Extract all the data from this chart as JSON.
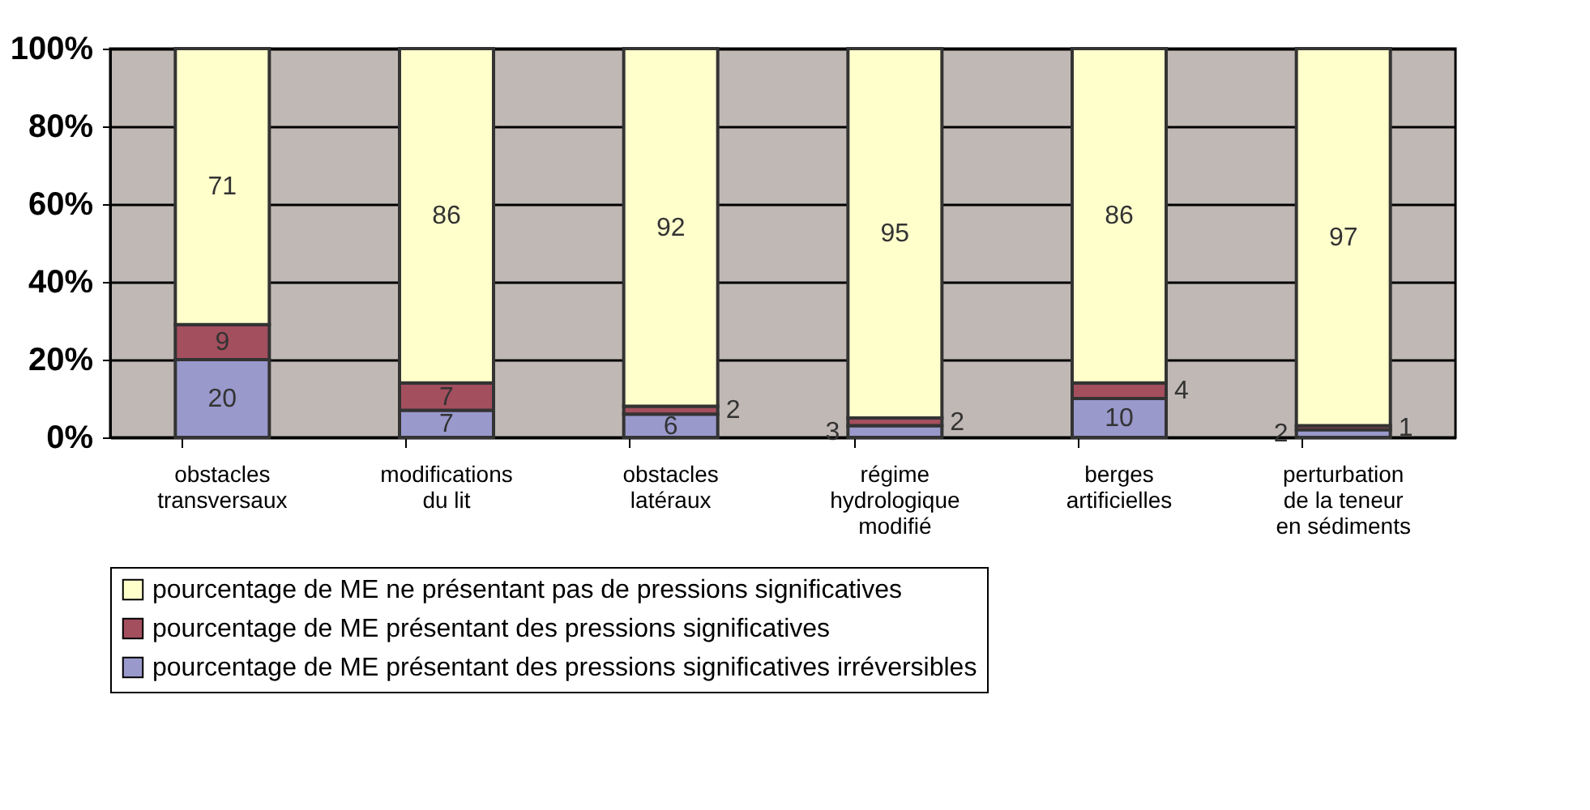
{
  "chart_data": {
    "type": "bar",
    "stacked": true,
    "categories": [
      "obstacles\ntransversaux",
      "modifications\ndu lit",
      "obstacles\nlatéraux",
      "régime\nhydrologique\nmodifié",
      "berges\nartificielles",
      "perturbation\nde la teneur\nen sédiments"
    ],
    "series": [
      {
        "name": "pourcentage de ME présentant des pressions significatives irréversibles",
        "color": "#9999cc",
        "values": [
          20,
          7,
          6,
          3,
          10,
          2
        ]
      },
      {
        "name": "pourcentage de ME présentant des pressions significatives",
        "color": "#a44f5e",
        "values": [
          9,
          7,
          2,
          2,
          4,
          1
        ]
      },
      {
        "name": "pourcentage de ME ne présentant pas de pressions significatives",
        "color": "#ffffcc",
        "values": [
          71,
          86,
          92,
          95,
          86,
          97
        ]
      }
    ],
    "ylim": [
      0,
      100
    ],
    "yticks": [
      {
        "value": 0,
        "label": "0%"
      },
      {
        "value": 20,
        "label": "20%"
      },
      {
        "value": 40,
        "label": "40%"
      },
      {
        "value": 60,
        "label": "60%"
      },
      {
        "value": 80,
        "label": "80%"
      },
      {
        "value": 100,
        "label": "100%"
      }
    ],
    "grid": "y",
    "legend": "bottom",
    "data_labels": true
  }
}
